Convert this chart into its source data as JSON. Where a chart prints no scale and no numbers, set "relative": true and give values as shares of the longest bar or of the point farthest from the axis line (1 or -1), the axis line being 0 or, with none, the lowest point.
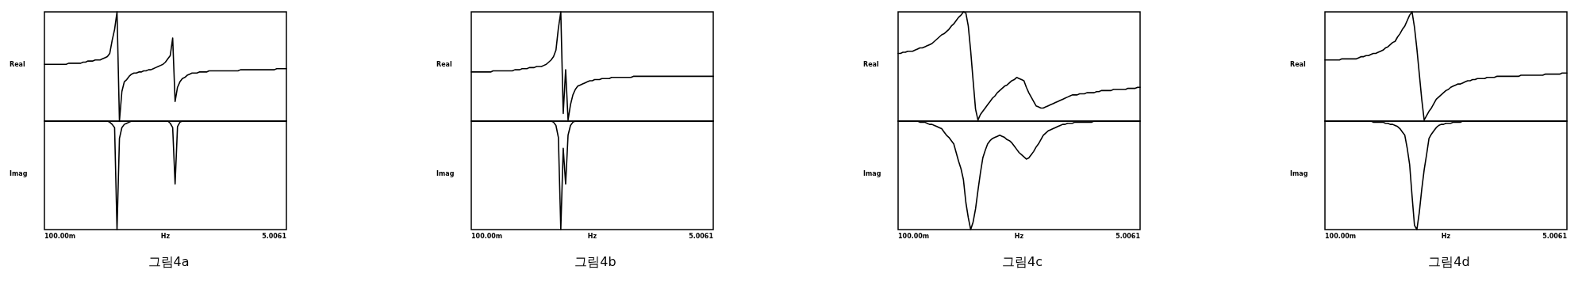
{
  "chart_data": [
    {
      "type": "line",
      "relative": true,
      "ylabel": "Real",
      "categories": [
        null,
        null,
        null,
        null,
        null,
        null,
        null,
        null,
        null,
        null,
        null,
        null,
        null,
        null,
        null,
        null,
        null,
        null,
        null,
        null,
        null,
        null,
        null,
        null,
        null,
        null,
        null,
        null,
        null,
        null,
        null,
        null,
        null,
        null,
        null,
        null,
        null,
        null,
        null,
        null,
        null,
        null,
        null,
        null,
        null,
        null,
        null,
        null,
        null,
        null,
        null,
        null,
        null,
        null,
        null,
        null,
        null,
        null,
        null,
        null,
        null,
        null,
        null,
        null,
        null,
        null,
        null,
        null,
        null,
        null,
        null,
        null,
        null,
        null,
        null,
        null,
        null,
        null,
        null,
        null,
        null,
        null,
        null,
        null,
        null,
        null,
        null,
        null,
        null,
        null,
        null,
        null,
        null,
        null,
        null,
        null,
        null,
        null,
        null,
        null,
        null
      ],
      "series": [
        {
          "color": "#000000",
          "values": [
            0.52,
            0.52,
            0.52,
            0.52,
            0.52,
            0.52,
            0.52,
            0.52,
            0.52,
            0.52,
            0.53,
            0.53,
            0.53,
            0.53,
            0.53,
            0.53,
            0.54,
            0.54,
            0.55,
            0.55,
            0.55,
            0.56,
            0.56,
            0.56,
            0.57,
            0.58,
            0.59,
            0.62,
            0.74,
            0.84,
            1.0,
            0,
            0.27,
            0.36,
            0.38,
            0.41,
            0.43,
            0.44,
            0.44,
            0.45,
            0.45,
            0.46,
            0.46,
            0.47,
            0.47,
            0.48,
            0.49,
            0.5,
            0.51,
            0.52,
            0.54,
            0.57,
            0.6,
            0.76,
            0.18,
            0.31,
            0.36,
            0.39,
            0.4,
            0.42,
            0.43,
            0.44,
            0.44,
            0.44,
            0.45,
            0.45,
            0.45,
            0.45,
            0.46,
            0.46,
            0.46,
            0.46,
            0.46,
            0.46,
            0.46,
            0.46,
            0.46,
            0.46,
            0.46,
            0.46,
            0.46,
            0.47,
            0.47,
            0.47,
            0.47,
            0.47,
            0.47,
            0.47,
            0.47,
            0.47,
            0.47,
            0.47,
            0.47,
            0.47,
            0.47,
            0.47,
            0.48,
            0.48,
            0.48,
            0.48,
            0.48
          ]
        }
      ]
    },
    {
      "type": "line",
      "relative": true,
      "ylabel": "Imag",
      "xlabel": "Hz",
      "annotations": [
        "100.00m",
        "5.0061",
        "그림4a"
      ],
      "categories": [
        null,
        null,
        null,
        null,
        null,
        null,
        null,
        null,
        null,
        null,
        null,
        null,
        null,
        null,
        null,
        null,
        null,
        null,
        null,
        null,
        null,
        null,
        null,
        null,
        null,
        null,
        null,
        null,
        null,
        null,
        null,
        null,
        null,
        null,
        null,
        null,
        null,
        null,
        null,
        null,
        null,
        null,
        null,
        null,
        null,
        null,
        null,
        null,
        null,
        null,
        null,
        null,
        null,
        null,
        null,
        null,
        null,
        null,
        null,
        null,
        null,
        null,
        null,
        null,
        null,
        null,
        null,
        null,
        null,
        null,
        null,
        null,
        null,
        null,
        null,
        null,
        null,
        null,
        null,
        null,
        null,
        null,
        null,
        null,
        null,
        null,
        null,
        null,
        null,
        null,
        null,
        null,
        null,
        null,
        null,
        null,
        null,
        null,
        null,
        null,
        null
      ],
      "series": [
        {
          "color": "#000000",
          "values": [
            0,
            0,
            0,
            0,
            0,
            0,
            0,
            0,
            0,
            0,
            0,
            0,
            0,
            0,
            0,
            0,
            0,
            0,
            0,
            0,
            0,
            0,
            0,
            0,
            0,
            0,
            0,
            -0.01,
            -0.03,
            -0.06,
            -1.0,
            -0.16,
            -0.06,
            -0.03,
            -0.02,
            -0.01,
            0,
            0,
            0,
            0,
            0,
            0,
            0,
            0,
            0,
            0,
            0,
            0,
            0,
            0,
            0,
            0,
            -0.02,
            -0.06,
            -0.58,
            -0.05,
            -0.01,
            0,
            0,
            0,
            0,
            0,
            0,
            0,
            0,
            0,
            0,
            0,
            0,
            0,
            0,
            0,
            0,
            0,
            0,
            0,
            0,
            0,
            0,
            0,
            0,
            0,
            0,
            0,
            0,
            0,
            0,
            0,
            0,
            0,
            0,
            0,
            0,
            0,
            0,
            0,
            0,
            0,
            0,
            0,
            0
          ]
        }
      ]
    },
    {
      "type": "line",
      "relative": true,
      "ylabel": "Real",
      "categories": [
        null,
        null,
        null,
        null,
        null,
        null,
        null,
        null,
        null,
        null,
        null,
        null,
        null,
        null,
        null,
        null,
        null,
        null,
        null,
        null,
        null,
        null,
        null,
        null,
        null,
        null,
        null,
        null,
        null,
        null,
        null,
        null,
        null,
        null,
        null,
        null,
        null,
        null,
        null,
        null,
        null,
        null,
        null,
        null,
        null,
        null,
        null,
        null,
        null,
        null,
        null,
        null,
        null,
        null,
        null,
        null,
        null,
        null,
        null,
        null,
        null,
        null,
        null,
        null,
        null,
        null,
        null,
        null,
        null,
        null,
        null,
        null,
        null,
        null,
        null,
        null,
        null,
        null,
        null,
        null,
        null,
        null,
        null,
        null,
        null,
        null,
        null,
        null,
        null,
        null,
        null,
        null,
        null,
        null,
        null,
        null,
        null,
        null,
        null,
        null,
        null
      ],
      "series": [
        {
          "color": "#000000",
          "values": [
            0.45,
            0.45,
            0.45,
            0.45,
            0.45,
            0.45,
            0.45,
            0.45,
            0.45,
            0.46,
            0.46,
            0.46,
            0.46,
            0.46,
            0.46,
            0.46,
            0.46,
            0.46,
            0.47,
            0.47,
            0.47,
            0.48,
            0.48,
            0.48,
            0.49,
            0.49,
            0.49,
            0.5,
            0.5,
            0.5,
            0.51,
            0.52,
            0.54,
            0.56,
            0.59,
            0.65,
            0.85,
            1.0,
            0.07,
            0.47,
            0.01,
            0.15,
            0.24,
            0.29,
            0.32,
            0.33,
            0.34,
            0.35,
            0.36,
            0.37,
            0.37,
            0.38,
            0.38,
            0.38,
            0.39,
            0.39,
            0.39,
            0.39,
            0.4,
            0.4,
            0.4,
            0.4,
            0.4,
            0.4,
            0.4,
            0.4,
            0.4,
            0.41,
            0.41,
            0.41,
            0.41,
            0.41,
            0.41,
            0.41,
            0.41,
            0.41,
            0.41,
            0.41,
            0.41,
            0.41,
            0.41,
            0.41,
            0.41,
            0.41,
            0.41,
            0.41,
            0.41,
            0.41,
            0.41,
            0.41,
            0.41,
            0.41,
            0.41,
            0.41,
            0.41,
            0.41,
            0.41,
            0.41,
            0.41,
            0.41,
            0.41
          ]
        }
      ]
    },
    {
      "type": "line",
      "relative": true,
      "ylabel": "Imag",
      "xlabel": "Hz",
      "annotations": [
        "100.00m",
        "5.0061",
        "그림4b"
      ],
      "categories": [
        null,
        null,
        null,
        null,
        null,
        null,
        null,
        null,
        null,
        null,
        null,
        null,
        null,
        null,
        null,
        null,
        null,
        null,
        null,
        null,
        null,
        null,
        null,
        null,
        null,
        null,
        null,
        null,
        null,
        null,
        null,
        null,
        null,
        null,
        null,
        null,
        null,
        null,
        null,
        null,
        null,
        null,
        null,
        null,
        null,
        null,
        null,
        null,
        null,
        null,
        null,
        null,
        null,
        null,
        null,
        null,
        null,
        null,
        null,
        null,
        null,
        null,
        null,
        null,
        null,
        null,
        null,
        null,
        null,
        null,
        null,
        null,
        null,
        null,
        null,
        null,
        null,
        null,
        null,
        null,
        null,
        null,
        null,
        null,
        null,
        null,
        null,
        null,
        null,
        null,
        null,
        null,
        null,
        null,
        null,
        null,
        null,
        null,
        null,
        null,
        null
      ],
      "series": [
        {
          "color": "#000000",
          "values": [
            0,
            0,
            0,
            0,
            0,
            0,
            0,
            0,
            0,
            0,
            0,
            0,
            0,
            0,
            0,
            0,
            0,
            0,
            0,
            0,
            0,
            0,
            0,
            0,
            0,
            0,
            0,
            0,
            0,
            0,
            0,
            0,
            0,
            0,
            -0.01,
            -0.04,
            -0.15,
            -1.0,
            -0.25,
            -0.58,
            -0.13,
            -0.04,
            -0.01,
            0,
            0,
            0,
            0,
            0,
            0,
            0,
            0,
            0,
            0,
            0,
            0,
            0,
            0,
            0,
            0,
            0,
            0,
            0,
            0,
            0,
            0,
            0,
            0,
            0,
            0,
            0,
            0,
            0,
            0,
            0,
            0,
            0,
            0,
            0,
            0,
            0,
            0,
            0,
            0,
            0,
            0,
            0,
            0,
            0,
            0,
            0,
            0,
            0,
            0,
            0,
            0,
            0,
            0,
            0,
            0,
            0,
            0
          ]
        }
      ]
    },
    {
      "type": "line",
      "relative": true,
      "ylabel": "Real",
      "categories": [
        null,
        null,
        null,
        null,
        null,
        null,
        null,
        null,
        null,
        null,
        null,
        null,
        null,
        null,
        null,
        null,
        null,
        null,
        null,
        null,
        null,
        null,
        null,
        null,
        null,
        null,
        null,
        null,
        null,
        null,
        null,
        null,
        null,
        null,
        null,
        null,
        null,
        null,
        null,
        null,
        null,
        null,
        null,
        null,
        null,
        null,
        null,
        null,
        null,
        null,
        null,
        null,
        null,
        null,
        null,
        null,
        null,
        null,
        null,
        null,
        null,
        null,
        null,
        null,
        null,
        null,
        null,
        null,
        null,
        null,
        null,
        null,
        null,
        null,
        null,
        null,
        null,
        null,
        null,
        null,
        null,
        null,
        null,
        null,
        null,
        null,
        null,
        null,
        null,
        null,
        null,
        null,
        null,
        null,
        null,
        null,
        null,
        null,
        null,
        null,
        null
      ],
      "series": [
        {
          "color": "#000000",
          "values": [
            0.62,
            0.62,
            0.63,
            0.63,
            0.64,
            0.64,
            0.64,
            0.65,
            0.66,
            0.67,
            0.67,
            0.68,
            0.69,
            0.7,
            0.71,
            0.73,
            0.75,
            0.77,
            0.79,
            0.8,
            0.82,
            0.84,
            0.87,
            0.89,
            0.92,
            0.95,
            0.97,
            1.0,
            0.99,
            0.87,
            0.64,
            0.37,
            0.11,
            0.01,
            0.06,
            0.09,
            0.12,
            0.15,
            0.18,
            0.21,
            0.23,
            0.26,
            0.28,
            0.3,
            0.32,
            0.33,
            0.35,
            0.37,
            0.38,
            0.4,
            0.39,
            0.38,
            0.37,
            0.31,
            0.26,
            0.22,
            0.18,
            0.14,
            0.13,
            0.12,
            0.12,
            0.13,
            0.14,
            0.15,
            0.16,
            0.17,
            0.18,
            0.19,
            0.2,
            0.21,
            0.22,
            0.23,
            0.24,
            0.24,
            0.24,
            0.25,
            0.25,
            0.25,
            0.26,
            0.26,
            0.26,
            0.26,
            0.27,
            0.27,
            0.28,
            0.28,
            0.28,
            0.28,
            0.28,
            0.29,
            0.29,
            0.29,
            0.29,
            0.29,
            0.29,
            0.3,
            0.3,
            0.3,
            0.3,
            0.31,
            0.31
          ]
        }
      ]
    },
    {
      "type": "line",
      "relative": true,
      "ylabel": "Imag",
      "xlabel": "Hz",
      "annotations": [
        "100.00m",
        "5.0061",
        "그림4c"
      ],
      "categories": [
        null,
        null,
        null,
        null,
        null,
        null,
        null,
        null,
        null,
        null,
        null,
        null,
        null,
        null,
        null,
        null,
        null,
        null,
        null,
        null,
        null,
        null,
        null,
        null,
        null,
        null,
        null,
        null,
        null,
        null,
        null,
        null,
        null,
        null,
        null,
        null,
        null,
        null,
        null,
        null,
        null,
        null,
        null,
        null,
        null,
        null,
        null,
        null,
        null,
        null,
        null,
        null,
        null,
        null,
        null,
        null,
        null,
        null,
        null,
        null,
        null,
        null,
        null,
        null,
        null,
        null,
        null,
        null,
        null,
        null,
        null,
        null,
        null,
        null,
        null,
        null,
        null,
        null,
        null,
        null,
        null,
        null,
        null,
        null,
        null,
        null,
        null,
        null,
        null,
        null,
        null,
        null,
        null,
        null,
        null,
        null,
        null,
        null,
        null,
        null,
        null
      ],
      "series": [
        {
          "color": "#000000",
          "values": [
            0,
            0,
            0,
            0,
            0,
            0,
            0,
            0,
            0,
            -0.01,
            -0.01,
            -0.01,
            -0.02,
            -0.03,
            -0.03,
            -0.04,
            -0.05,
            -0.06,
            -0.07,
            -0.1,
            -0.13,
            -0.15,
            -0.18,
            -0.21,
            -0.29,
            -0.37,
            -0.44,
            -0.54,
            -0.75,
            -0.89,
            -1.0,
            -0.93,
            -0.81,
            -0.64,
            -0.48,
            -0.34,
            -0.27,
            -0.21,
            -0.18,
            -0.16,
            -0.15,
            -0.14,
            -0.13,
            -0.14,
            -0.15,
            -0.17,
            -0.18,
            -0.2,
            -0.23,
            -0.26,
            -0.29,
            -0.31,
            -0.33,
            -0.35,
            -0.34,
            -0.31,
            -0.28,
            -0.24,
            -0.21,
            -0.17,
            -0.13,
            -0.11,
            -0.09,
            -0.08,
            -0.07,
            -0.06,
            -0.05,
            -0.04,
            -0.03,
            -0.03,
            -0.02,
            -0.02,
            -0.02,
            -0.01,
            -0.01,
            -0.01,
            -0.01,
            -0.01,
            -0.01,
            -0.01,
            -0.01,
            0,
            0,
            0,
            0,
            0,
            0,
            0,
            0,
            0,
            0,
            0,
            0,
            0,
            0,
            0,
            0,
            0,
            0,
            0,
            0
          ]
        }
      ]
    },
    {
      "type": "line",
      "relative": true,
      "ylabel": "Real",
      "categories": [
        null,
        null,
        null,
        null,
        null,
        null,
        null,
        null,
        null,
        null,
        null,
        null,
        null,
        null,
        null,
        null,
        null,
        null,
        null,
        null,
        null,
        null,
        null,
        null,
        null,
        null,
        null,
        null,
        null,
        null,
        null,
        null,
        null,
        null,
        null,
        null,
        null,
        null,
        null,
        null,
        null,
        null,
        null,
        null,
        null,
        null,
        null,
        null,
        null,
        null,
        null,
        null,
        null,
        null,
        null,
        null,
        null,
        null,
        null,
        null,
        null,
        null,
        null,
        null,
        null,
        null,
        null,
        null,
        null,
        null,
        null,
        null,
        null,
        null,
        null,
        null,
        null,
        null,
        null,
        null,
        null,
        null,
        null,
        null,
        null,
        null,
        null,
        null,
        null,
        null,
        null,
        null,
        null,
        null,
        null,
        null,
        null,
        null,
        null,
        null,
        null
      ],
      "series": [
        {
          "color": "#000000",
          "values": [
            0.56,
            0.56,
            0.56,
            0.56,
            0.56,
            0.56,
            0.56,
            0.57,
            0.57,
            0.57,
            0.57,
            0.57,
            0.57,
            0.57,
            0.58,
            0.59,
            0.59,
            0.6,
            0.6,
            0.61,
            0.62,
            0.62,
            0.63,
            0.64,
            0.65,
            0.67,
            0.68,
            0.7,
            0.72,
            0.73,
            0.77,
            0.8,
            0.84,
            0.87,
            0.92,
            0.97,
            1.0,
            0.86,
            0.66,
            0.43,
            0.2,
            0.01,
            0.05,
            0.09,
            0.12,
            0.16,
            0.2,
            0.22,
            0.24,
            0.26,
            0.28,
            0.29,
            0.31,
            0.32,
            0.33,
            0.34,
            0.34,
            0.35,
            0.36,
            0.37,
            0.37,
            0.38,
            0.38,
            0.39,
            0.39,
            0.39,
            0.39,
            0.4,
            0.4,
            0.4,
            0.4,
            0.41,
            0.41,
            0.41,
            0.41,
            0.41,
            0.41,
            0.41,
            0.41,
            0.41,
            0.41,
            0.42,
            0.42,
            0.42,
            0.42,
            0.42,
            0.42,
            0.42,
            0.42,
            0.42,
            0.42,
            0.43,
            0.43,
            0.43,
            0.43,
            0.43,
            0.43,
            0.43,
            0.44,
            0.44,
            0.44
          ]
        }
      ]
    },
    {
      "type": "line",
      "relative": true,
      "ylabel": "Imag",
      "xlabel": "Hz",
      "annotations": [
        "100.00m",
        "5.0061",
        "그림4d"
      ],
      "categories": [
        null,
        null,
        null,
        null,
        null,
        null,
        null,
        null,
        null,
        null,
        null,
        null,
        null,
        null,
        null,
        null,
        null,
        null,
        null,
        null,
        null,
        null,
        null,
        null,
        null,
        null,
        null,
        null,
        null,
        null,
        null,
        null,
        null,
        null,
        null,
        null,
        null,
        null,
        null,
        null,
        null,
        null,
        null,
        null,
        null,
        null,
        null,
        null,
        null,
        null,
        null,
        null,
        null,
        null,
        null,
        null,
        null,
        null,
        null,
        null,
        null,
        null,
        null,
        null,
        null,
        null,
        null,
        null,
        null,
        null,
        null,
        null,
        null,
        null,
        null,
        null,
        null,
        null,
        null,
        null,
        null,
        null,
        null,
        null,
        null,
        null,
        null,
        null,
        null,
        null,
        null,
        null,
        null,
        null,
        null,
        null,
        null,
        null,
        null,
        null,
        null
      ],
      "series": [
        {
          "color": "#000000",
          "values": [
            0,
            0,
            0,
            0,
            0,
            0,
            0,
            0,
            0,
            0,
            0,
            0,
            0,
            0,
            0,
            0,
            0,
            0,
            0,
            0,
            -0.01,
            -0.01,
            -0.01,
            -0.01,
            -0.01,
            -0.02,
            -0.02,
            -0.03,
            -0.03,
            -0.04,
            -0.05,
            -0.07,
            -0.1,
            -0.13,
            -0.25,
            -0.4,
            -0.69,
            -0.96,
            -1.0,
            -0.84,
            -0.63,
            -0.45,
            -0.31,
            -0.16,
            -0.12,
            -0.09,
            -0.06,
            -0.04,
            -0.03,
            -0.03,
            -0.02,
            -0.02,
            -0.02,
            -0.01,
            -0.01,
            -0.01,
            -0.01,
            0,
            0,
            0,
            0,
            0,
            0,
            0,
            0,
            0,
            0,
            0,
            0,
            0,
            0,
            0,
            0,
            0,
            0,
            0,
            0,
            0,
            0,
            0,
            0,
            0,
            0,
            0,
            0,
            0,
            0,
            0,
            0,
            0,
            0,
            0,
            0,
            0,
            0,
            0,
            0,
            0,
            0,
            0,
            0
          ]
        }
      ]
    }
  ]
}
